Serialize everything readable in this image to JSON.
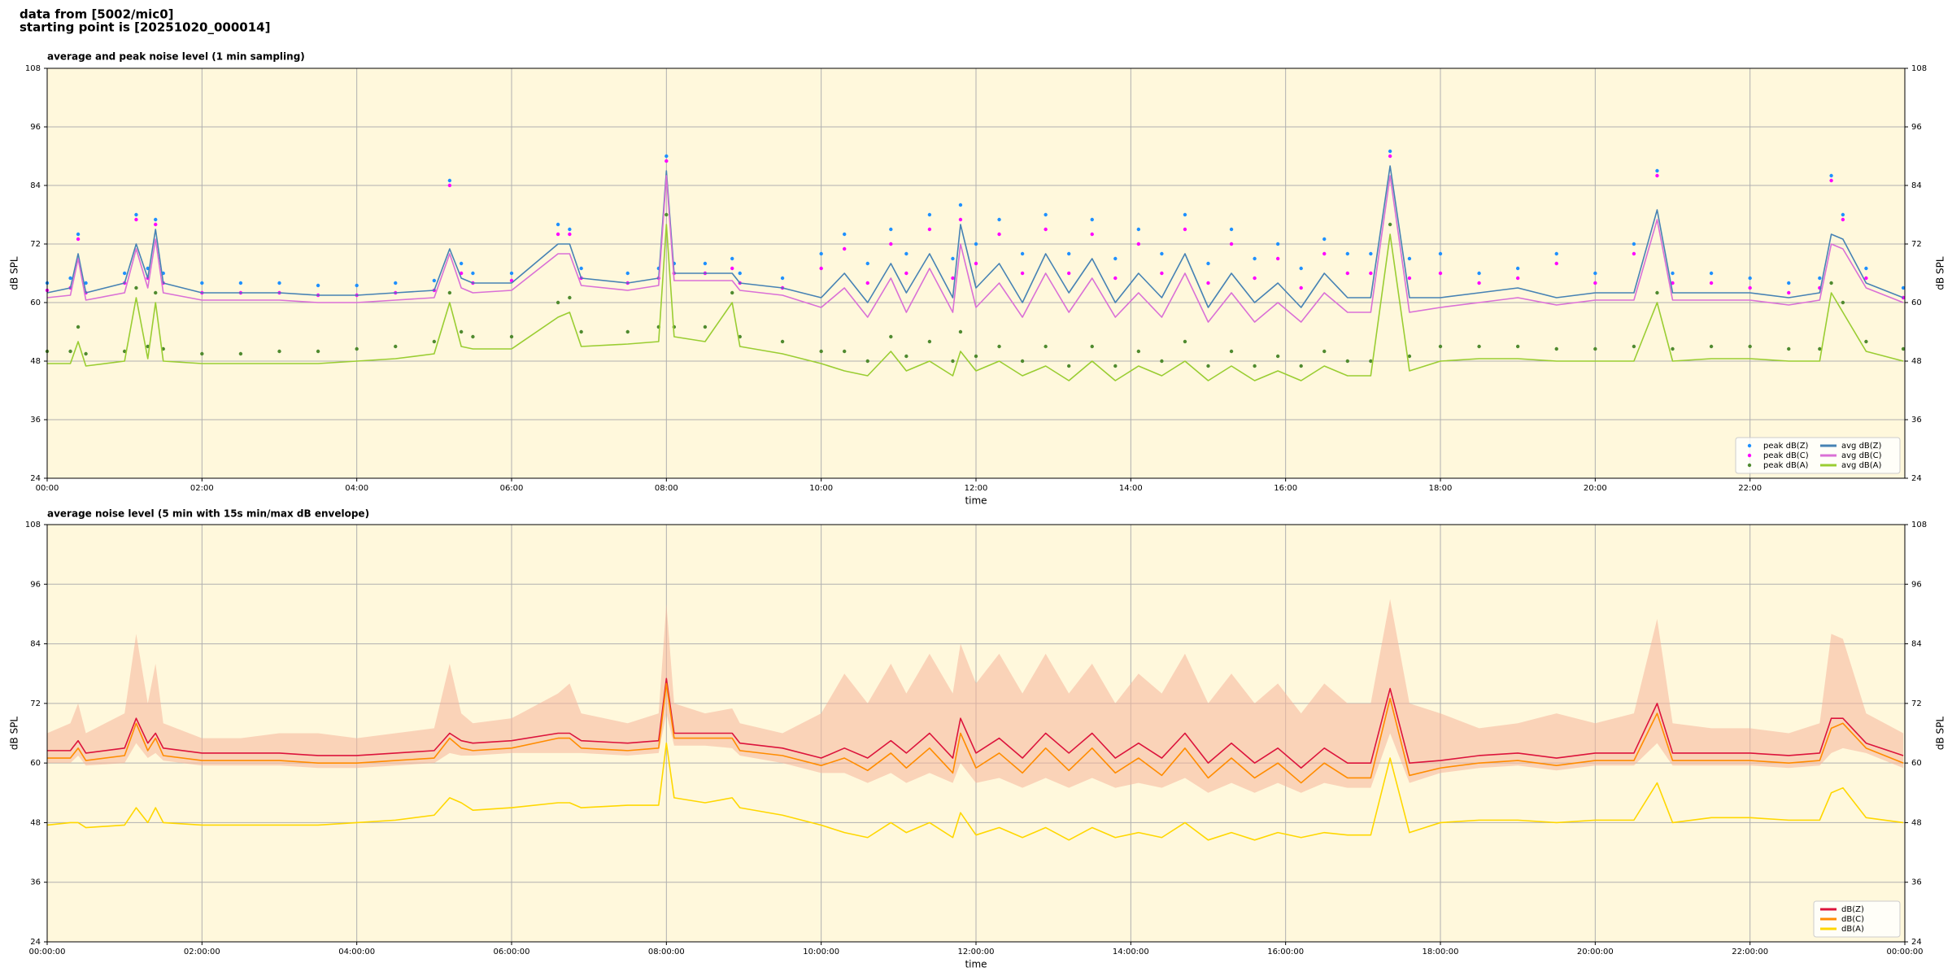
{
  "header": [
    "data from [5002/mic0]",
    "starting point is [20251020_000014]"
  ],
  "chart_data": [
    {
      "type": "line",
      "title": "average and peak noise level (1 min sampling)",
      "xlabel": "time",
      "ylabel": "dB SPL",
      "y2label": "dB SPL",
      "background": "#fff8dc",
      "grid": true,
      "legend": "lower right",
      "legend_columns": 2,
      "xlim": [
        0,
        24
      ],
      "ylim": [
        24,
        108
      ],
      "yticks": [
        24,
        36,
        48,
        60,
        72,
        84,
        96,
        108
      ],
      "xticks": [
        {
          "value": 0,
          "label": "00:00"
        },
        {
          "value": 2,
          "label": "02:00"
        },
        {
          "value": 4,
          "label": "04:00"
        },
        {
          "value": 6,
          "label": "06:00"
        },
        {
          "value": 8,
          "label": "08:00"
        },
        {
          "value": 10,
          "label": "10:00"
        },
        {
          "value": 12,
          "label": "12:00"
        },
        {
          "value": 14,
          "label": "14:00"
        },
        {
          "value": 16,
          "label": "16:00"
        },
        {
          "value": 18,
          "label": "18:00"
        },
        {
          "value": 20,
          "label": "20:00"
        },
        {
          "value": 22,
          "label": "22:00"
        }
      ],
      "x": [
        0,
        0.3,
        0.4,
        0.5,
        1.0,
        1.15,
        1.3,
        1.4,
        1.5,
        2,
        2.5,
        3,
        3.5,
        4,
        4.5,
        5,
        5.2,
        5.35,
        5.5,
        6,
        6.6,
        6.75,
        6.9,
        7.5,
        7.9,
        8.0,
        8.1,
        8.5,
        8.85,
        8.95,
        9.5,
        10,
        10.3,
        10.6,
        10.9,
        11.1,
        11.4,
        11.7,
        11.8,
        12.0,
        12.3,
        12.6,
        12.9,
        13.2,
        13.5,
        13.8,
        14.1,
        14.4,
        14.7,
        15.0,
        15.3,
        15.6,
        15.9,
        16.2,
        16.5,
        16.8,
        17.1,
        17.35,
        17.6,
        18,
        18.5,
        19,
        19.5,
        20,
        20.5,
        20.8,
        21.0,
        21.5,
        22,
        22.5,
        22.9,
        23.05,
        23.2,
        23.5,
        23.98
      ],
      "series": [
        {
          "name": "peak dB(Z)",
          "color": "#1e90ff",
          "marker": true,
          "values": [
            64,
            65,
            74,
            64,
            66,
            78,
            67,
            77,
            66,
            64,
            64,
            64,
            63.5,
            63.5,
            64,
            64.5,
            85,
            68,
            66,
            66,
            76,
            75,
            67,
            66,
            67,
            90,
            68,
            68,
            69,
            66,
            65,
            70,
            74,
            68,
            75,
            70,
            78,
            69,
            80,
            72,
            77,
            70,
            78,
            70,
            77,
            69,
            75,
            70,
            78,
            68,
            75,
            69,
            72,
            67,
            73,
            70,
            70,
            91,
            69,
            70,
            66,
            67,
            70,
            66,
            72,
            87,
            66,
            66,
            65,
            64,
            65,
            86,
            78,
            67,
            63
          ]
        },
        {
          "name": "peak dB(C)",
          "color": "#ff00ff",
          "marker": true,
          "values": [
            62.5,
            63,
            73,
            62,
            64,
            77,
            65,
            76,
            64,
            62,
            62,
            62,
            61.5,
            61.5,
            62,
            62.5,
            84,
            66,
            64,
            64.5,
            74,
            74,
            65,
            64,
            65,
            89,
            66,
            66,
            67,
            64,
            63,
            67,
            71,
            64,
            72,
            66,
            75,
            65,
            77,
            68,
            74,
            66,
            75,
            66,
            74,
            65,
            72,
            66,
            75,
            64,
            72,
            65,
            69,
            63,
            70,
            66,
            66,
            90,
            65,
            66,
            64,
            65,
            68,
            64,
            70,
            86,
            64,
            64,
            63,
            62,
            63,
            85,
            77,
            65,
            61
          ]
        },
        {
          "name": "peak dB(A)",
          "color": "#4f8a2f",
          "marker": true,
          "values": [
            50,
            50,
            55,
            49.5,
            50,
            63,
            51,
            62,
            50.5,
            49.5,
            49.5,
            50,
            50,
            50.5,
            51,
            52,
            62,
            54,
            53,
            53,
            60,
            61,
            54,
            54,
            55,
            78,
            55,
            55,
            62,
            53,
            52,
            50,
            50,
            48,
            53,
            49,
            52,
            48,
            54,
            49,
            51,
            48,
            51,
            47,
            51,
            47,
            50,
            48,
            52,
            47,
            50,
            47,
            49,
            47,
            50,
            48,
            48,
            76,
            49,
            51,
            51,
            51,
            50.5,
            50.5,
            51,
            62,
            50.5,
            51,
            51,
            50.5,
            50.5,
            64,
            60,
            52,
            50.5
          ]
        },
        {
          "name": "avg dB(Z)",
          "color": "#4682b4",
          "values": [
            62,
            63,
            70,
            62,
            64,
            72,
            65,
            75,
            64,
            62,
            62,
            62,
            61.5,
            61.5,
            62,
            62.5,
            71,
            65,
            64,
            64,
            72,
            72,
            65,
            64,
            65,
            87,
            66,
            66,
            66,
            64,
            63,
            61,
            66,
            60,
            68,
            62,
            70,
            61,
            76,
            63,
            68,
            60,
            70,
            62,
            69,
            60,
            66,
            61,
            70,
            59,
            66,
            60,
            64,
            59,
            66,
            61,
            61,
            88,
            61,
            61,
            62,
            63,
            61,
            62,
            62,
            79,
            62,
            62,
            62,
            61,
            62,
            74,
            73,
            64,
            61
          ]
        },
        {
          "name": "avg dB(C)",
          "color": "#da70d6",
          "values": [
            61,
            61.5,
            69,
            60.5,
            62,
            71,
            63,
            73,
            62,
            60.5,
            60.5,
            60.5,
            60,
            60,
            60.5,
            61,
            70,
            63,
            62,
            62.5,
            70,
            70,
            63.5,
            62.5,
            63.5,
            86,
            64.5,
            64.5,
            64.5,
            62.5,
            61.5,
            59,
            63,
            57,
            65,
            58,
            67,
            58,
            72,
            59,
            64,
            57,
            66,
            58,
            65,
            57,
            62,
            57,
            66,
            56,
            62,
            56,
            60,
            56,
            62,
            58,
            58,
            86,
            58,
            59,
            60,
            61,
            59.5,
            60.5,
            60.5,
            77,
            60.5,
            60.5,
            60.5,
            59.5,
            60.5,
            72,
            71,
            63,
            60
          ]
        },
        {
          "name": "avg dB(A)",
          "color": "#9acd32",
          "values": [
            47.5,
            47.5,
            52,
            47,
            48,
            61,
            48.5,
            60,
            48,
            47.5,
            47.5,
            47.5,
            47.5,
            48,
            48.5,
            49.5,
            60,
            51,
            50.5,
            50.5,
            57,
            58,
            51,
            51.5,
            52,
            76,
            53,
            52,
            60,
            51,
            49.5,
            47.5,
            46,
            45,
            50,
            46,
            48,
            45,
            50,
            46,
            48,
            45,
            47,
            44,
            48,
            44,
            47,
            45,
            48,
            44,
            47,
            44,
            46,
            44,
            47,
            45,
            45,
            74,
            46,
            48,
            48.5,
            48.5,
            48,
            48,
            48,
            60,
            48,
            48.5,
            48.5,
            48,
            48,
            62,
            58,
            50,
            48
          ]
        }
      ]
    },
    {
      "type": "line",
      "title": "average noise level (5 min with 15s min/max dB envelope)",
      "xlabel": "time",
      "ylabel": "dB SPL",
      "y2label": "dB SPL",
      "background": "#fff8dc",
      "grid": true,
      "legend": "lower right",
      "legend_columns": 1,
      "xlim": [
        0,
        24
      ],
      "ylim": [
        24,
        108
      ],
      "yticks": [
        24,
        36,
        48,
        60,
        72,
        84,
        96,
        108
      ],
      "xticks": [
        {
          "value": 0,
          "label": "00:00:00"
        },
        {
          "value": 2,
          "label": "02:00:00"
        },
        {
          "value": 4,
          "label": "04:00:00"
        },
        {
          "value": 6,
          "label": "06:00:00"
        },
        {
          "value": 8,
          "label": "08:00:00"
        },
        {
          "value": 10,
          "label": "10:00:00"
        },
        {
          "value": 12,
          "label": "12:00:00"
        },
        {
          "value": 14,
          "label": "14:00:00"
        },
        {
          "value": 16,
          "label": "16:00:00"
        },
        {
          "value": 18,
          "label": "18:00:00"
        },
        {
          "value": 20,
          "label": "20:00:00"
        },
        {
          "value": 22,
          "label": "22:00:00"
        },
        {
          "value": 24,
          "label": "00:00:00"
        }
      ],
      "x": [
        0,
        0.3,
        0.4,
        0.5,
        1.0,
        1.15,
        1.3,
        1.4,
        1.5,
        2,
        2.5,
        3,
        3.5,
        4,
        4.5,
        5,
        5.2,
        5.35,
        5.5,
        6,
        6.6,
        6.75,
        6.9,
        7.5,
        7.9,
        8.0,
        8.1,
        8.5,
        8.85,
        8.95,
        9.5,
        10,
        10.3,
        10.6,
        10.9,
        11.1,
        11.4,
        11.7,
        11.8,
        12.0,
        12.3,
        12.6,
        12.9,
        13.2,
        13.5,
        13.8,
        14.1,
        14.4,
        14.7,
        15.0,
        15.3,
        15.6,
        15.9,
        16.2,
        16.5,
        16.8,
        17.1,
        17.35,
        17.6,
        18,
        18.5,
        19,
        19.5,
        20,
        20.5,
        20.8,
        21.0,
        21.5,
        22,
        22.5,
        22.9,
        23.05,
        23.2,
        23.5,
        23.98
      ],
      "band": {
        "color": "#f6b49a",
        "lower": [
          60,
          60,
          61.5,
          59.5,
          60,
          64,
          61,
          62,
          60.5,
          59.5,
          59.5,
          59.5,
          59,
          59,
          59.5,
          60,
          62,
          61.5,
          61.5,
          62,
          62,
          62,
          62,
          61.5,
          62,
          70,
          63.5,
          63.5,
          63,
          61.5,
          60,
          58,
          58,
          56,
          58,
          56,
          58,
          56,
          60,
          56,
          57,
          55,
          57,
          55,
          57,
          55,
          56,
          55,
          57,
          54,
          56,
          54,
          56,
          54,
          56,
          55,
          55,
          66,
          56,
          58,
          59,
          59.5,
          58.5,
          59.5,
          59.5,
          64,
          59.5,
          59.5,
          59.5,
          59,
          59.5,
          62,
          63,
          62,
          59
        ],
        "upper": [
          66,
          68,
          72,
          66,
          70,
          86,
          72,
          80,
          68,
          65,
          65,
          66,
          66,
          65,
          66,
          67,
          80,
          70,
          68,
          69,
          74,
          76,
          70,
          68,
          70,
          92,
          72,
          70,
          71,
          68,
          66,
          70,
          78,
          72,
          80,
          74,
          82,
          74,
          84,
          76,
          82,
          74,
          82,
          74,
          80,
          72,
          78,
          74,
          82,
          72,
          78,
          72,
          76,
          70,
          76,
          72,
          72,
          93,
          72,
          70,
          67,
          68,
          70,
          68,
          70,
          89,
          68,
          67,
          67,
          66,
          68,
          86,
          85,
          70,
          66
        ]
      },
      "series": [
        {
          "name": "dB(Z)",
          "color": "#dc143c",
          "values": [
            62.5,
            62.5,
            64.5,
            62,
            63,
            69,
            64,
            66,
            63,
            62,
            62,
            62,
            61.5,
            61.5,
            62,
            62.5,
            66,
            64.5,
            64,
            64.5,
            66,
            66,
            64.5,
            64,
            64.5,
            77,
            66,
            66,
            66,
            64,
            63,
            61,
            63,
            61,
            64.5,
            62,
            66,
            61,
            69,
            62,
            65,
            61,
            66,
            62,
            66,
            61,
            64,
            61,
            66,
            60,
            64,
            60,
            63,
            59,
            63,
            60,
            60,
            75,
            60,
            60.5,
            61.5,
            62,
            61,
            62,
            62,
            72,
            62,
            62,
            62,
            61.5,
            62,
            69,
            69,
            64,
            61.5
          ]
        },
        {
          "name": "dB(C)",
          "color": "#ff8c00",
          "values": [
            61,
            61,
            63,
            60.5,
            61.5,
            68,
            62.5,
            65,
            61.5,
            60.5,
            60.5,
            60.5,
            60,
            60,
            60.5,
            61,
            65,
            63,
            62.5,
            63,
            65,
            65,
            63,
            62.5,
            63,
            76,
            65,
            65,
            65,
            62.5,
            61.5,
            59.5,
            61,
            58.5,
            62,
            59,
            63,
            58,
            66,
            59,
            62,
            58,
            63,
            58.5,
            63,
            58,
            61,
            57.5,
            63,
            57,
            61,
            57,
            60,
            56,
            60,
            57,
            57,
            73,
            57.5,
            59,
            60,
            60.5,
            59.5,
            60.5,
            60.5,
            70,
            60.5,
            60.5,
            60.5,
            60,
            60.5,
            67,
            68,
            63,
            60
          ]
        },
        {
          "name": "dB(A)",
          "color": "#ffd700",
          "values": [
            47.5,
            48,
            48,
            47,
            47.5,
            51,
            48,
            51,
            48,
            47.5,
            47.5,
            47.5,
            47.5,
            48,
            48.5,
            49.5,
            53,
            52,
            50.5,
            51,
            52,
            52,
            51,
            51.5,
            51.5,
            64,
            53,
            52,
            53,
            51,
            49.5,
            47.5,
            46,
            45,
            48,
            46,
            48,
            45,
            50,
            45.5,
            47,
            45,
            47,
            44.5,
            47,
            45,
            46,
            45,
            48,
            44.5,
            46,
            44.5,
            46,
            45,
            46,
            45.5,
            45.5,
            61,
            46,
            48,
            48.5,
            48.5,
            48,
            48.5,
            48.5,
            56,
            48,
            49,
            49,
            48.5,
            48.5,
            54,
            55,
            49,
            48
          ]
        }
      ]
    }
  ]
}
